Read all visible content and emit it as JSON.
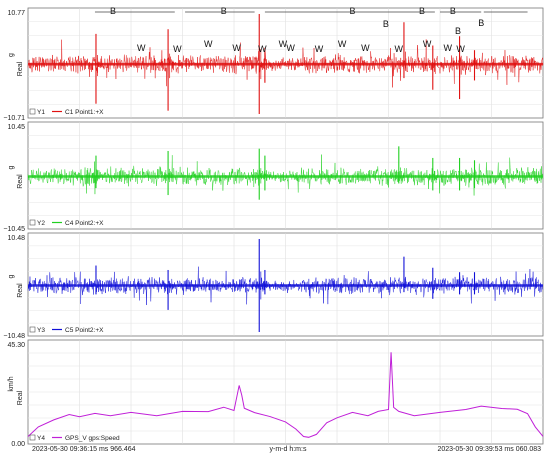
{
  "chart_data": [
    {
      "type": "line",
      "ylabel": "g",
      "ylabel2": "Real",
      "ylim": [
        -10.71,
        10.77
      ],
      "ytick_labels": [
        "10.77",
        "−10.71"
      ],
      "legend": {
        "axis": "Y1",
        "series": "C1 Point1:+X"
      },
      "color": "#e01010",
      "event_labels": [
        {
          "label": "B",
          "t": 0.185
        },
        {
          "label": "B",
          "t": 0.4
        },
        {
          "label": "B",
          "t": 0.65
        },
        {
          "label": "B",
          "t": 0.785
        },
        {
          "label": "B",
          "t": 0.845
        },
        {
          "label": "B",
          "t": 0.445
        },
        {
          "label": "B",
          "t": 0.505
        },
        {
          "label": "B",
          "t": 0.59
        },
        {
          "label": "W",
          "t": 0.22
        },
        {
          "label": "W",
          "t": 0.29
        },
        {
          "label": "W",
          "t": 0.35
        },
        {
          "label": "W",
          "t": 0.405
        },
        {
          "label": "W",
          "t": 0.455
        },
        {
          "label": "W",
          "t": 0.495
        },
        {
          "label": "W",
          "t": 0.51
        },
        {
          "label": "W",
          "t": 0.565
        },
        {
          "label": "W",
          "t": 0.61
        },
        {
          "label": "W",
          "t": 0.655
        },
        {
          "label": "W",
          "t": 0.72
        },
        {
          "label": "W",
          "t": 0.775
        },
        {
          "label": "W",
          "t": 0.815
        },
        {
          "label": "W",
          "t": 0.84
        }
      ],
      "spikes": [
        {
          "t": 0.132,
          "up": 6.5,
          "down": -8.5
        },
        {
          "t": 0.272,
          "up": 7.5,
          "down": -10.0
        },
        {
          "t": 0.449,
          "up": 10.77,
          "down": -10.71
        },
        {
          "t": 0.46,
          "up": 3.5,
          "down": -4.0
        },
        {
          "t": 0.73,
          "up": 9.0,
          "down": -3.0
        },
        {
          "t": 0.786,
          "up": 4.0,
          "down": -5.5
        },
        {
          "t": 0.838,
          "up": 6.0,
          "down": -7.5
        },
        {
          "t": 0.867,
          "up": 3.0,
          "down": -3.5
        }
      ]
    },
    {
      "type": "line",
      "ylabel": "g",
      "ylabel2": "Real",
      "ylim": [
        -10.45,
        10.45
      ],
      "ytick_labels": [
        "10.45",
        "−10.45"
      ],
      "legend": {
        "axis": "Y2",
        "series": "C4 Point2:+X"
      },
      "color": "#20d020",
      "spikes": [
        {
          "t": 0.132,
          "up": 4.5,
          "down": -2.5
        },
        {
          "t": 0.272,
          "up": 5.5,
          "down": -4.0
        },
        {
          "t": 0.449,
          "up": 6.0,
          "down": -5.0
        },
        {
          "t": 0.46,
          "up": 4.5,
          "down": -3.0
        },
        {
          "t": 0.72,
          "up": 6.5,
          "down": -1.5
        },
        {
          "t": 0.786,
          "up": 4.0,
          "down": -3.0
        },
        {
          "t": 0.838,
          "up": 4.0,
          "down": -3.0
        },
        {
          "t": 0.867,
          "up": 3.5,
          "down": -2.5
        }
      ]
    },
    {
      "type": "line",
      "ylabel": "g",
      "ylabel2": "Real",
      "ylim": [
        -10.48,
        10.48
      ],
      "ytick_labels": [
        "10.48",
        "−10.48"
      ],
      "legend": {
        "axis": "Y3",
        "series": "C5 Point2:+X"
      },
      "color": "#1010d8",
      "spikes": [
        {
          "t": 0.132,
          "up": 4.5,
          "down": -2.0
        },
        {
          "t": 0.272,
          "up": 3.5,
          "down": -5.5
        },
        {
          "t": 0.449,
          "up": 10.48,
          "down": -10.48
        },
        {
          "t": 0.46,
          "up": 3.5,
          "down": -2.0
        },
        {
          "t": 0.73,
          "up": 6.5,
          "down": -1.5
        },
        {
          "t": 0.786,
          "up": 4.0,
          "down": -3.0
        },
        {
          "t": 0.838,
          "up": 3.0,
          "down": -2.0
        },
        {
          "t": 0.867,
          "up": 3.0,
          "down": -2.0
        }
      ]
    },
    {
      "type": "line",
      "ylabel": "km/h",
      "ylabel2": "Real",
      "ylim": [
        0.0,
        45.3
      ],
      "ytick_labels": [
        "45.30",
        "0.00"
      ],
      "legend": {
        "axis": "Y4",
        "series": "GPS_V gps:Speed"
      },
      "color": "#c020d8",
      "x": [
        0.0,
        0.02,
        0.05,
        0.08,
        0.1,
        0.13,
        0.16,
        0.2,
        0.25,
        0.3,
        0.35,
        0.38,
        0.4,
        0.41,
        0.415,
        0.42,
        0.44,
        0.47,
        0.5,
        0.52,
        0.535,
        0.545,
        0.56,
        0.58,
        0.6,
        0.63,
        0.66,
        0.68,
        0.7,
        0.705,
        0.71,
        0.72,
        0.75,
        0.8,
        0.85,
        0.88,
        0.92,
        0.95,
        0.97,
        0.985,
        1.0
      ],
      "y": [
        2.0,
        6.0,
        10.0,
        12.0,
        11.5,
        12.5,
        12.0,
        13.0,
        12.0,
        13.5,
        14.0,
        15.5,
        14.5,
        26.0,
        22.0,
        15.0,
        13.5,
        11.0,
        9.0,
        5.0,
        2.0,
        1.0,
        3.0,
        8.0,
        11.0,
        13.0,
        12.0,
        13.5,
        15.0,
        42.0,
        16.0,
        13.5,
        12.0,
        13.0,
        15.0,
        16.0,
        15.5,
        14.5,
        13.0,
        6.0,
        2.0
      ]
    }
  ],
  "x_axis": {
    "start": "2023-05-30 09:36:15 ms 966.464",
    "center": "y-m-d h:m:s",
    "end": "2023-05-30 09:39:53 ms 060.083"
  }
}
